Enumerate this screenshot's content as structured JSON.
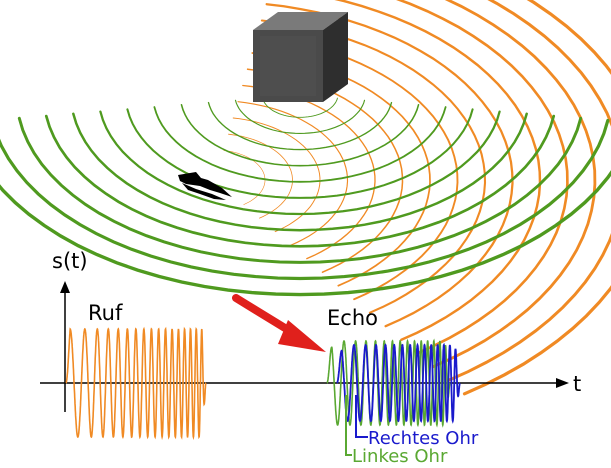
{
  "labels": {
    "y_axis": "s(t)",
    "x_axis": "t",
    "call": "Ruf",
    "echo": "Echo",
    "right_ear": "Rechtes Ohr",
    "left_ear": "Linkes Ohr"
  },
  "colors": {
    "call_wave": "#f08a24",
    "reflected_wave": "#4f9a1f",
    "right_ear_signal": "#1a1acc",
    "left_ear_signal": "#5aa832",
    "arrow": "#e0201c",
    "axis": "#000000",
    "object": "#4a4a4a"
  },
  "icons": {
    "object": "cube-object-icon",
    "bat": "bat-icon",
    "arrow": "red-arrow-icon"
  }
}
